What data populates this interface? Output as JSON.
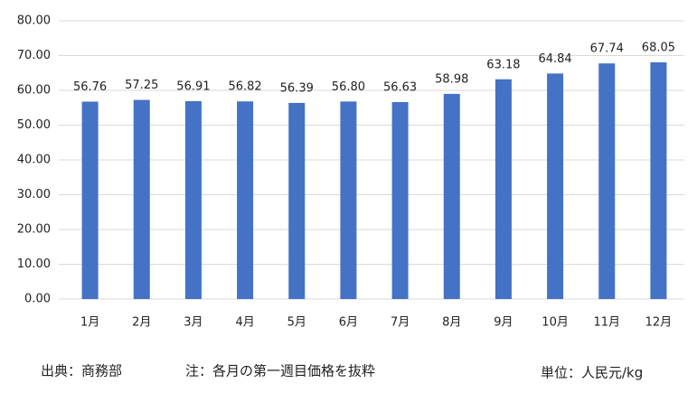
{
  "chart_data": {
    "type": "bar",
    "categories": [
      "1月",
      "2月",
      "3月",
      "4月",
      "5月",
      "6月",
      "7月",
      "8月",
      "9月",
      "10月",
      "11月",
      "12月"
    ],
    "values": [
      56.76,
      57.25,
      56.91,
      56.82,
      56.39,
      56.8,
      56.63,
      58.98,
      63.18,
      64.84,
      67.74,
      68.05
    ],
    "value_labels": [
      "56.76",
      "57.25",
      "56.91",
      "56.82",
      "56.39",
      "56.80",
      "56.63",
      "58.98",
      "63.18",
      "64.84",
      "67.74",
      "68.05"
    ],
    "color": "#4472c4",
    "ylim": [
      0,
      80
    ],
    "yticks": [
      {
        "value": 0,
        "label": "0.00"
      },
      {
        "value": 10,
        "label": "10.00"
      },
      {
        "value": 20,
        "label": "20.00"
      },
      {
        "value": 30,
        "label": "30.00"
      },
      {
        "value": 40,
        "label": "40.00"
      },
      {
        "value": 50,
        "label": "50.00"
      },
      {
        "value": 60,
        "label": "60.00"
      },
      {
        "value": 70,
        "label": "70.00"
      },
      {
        "value": 80,
        "label": "80.00"
      }
    ],
    "grid": true,
    "source": "出典：商務部",
    "note": "注：各月の第一週目価格を抜粋",
    "unit": "単位：人民元/kg"
  }
}
